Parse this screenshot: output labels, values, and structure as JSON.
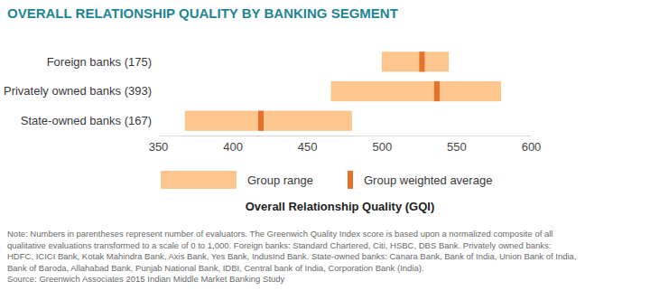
{
  "chart_data": {
    "type": "bar",
    "orientation": "horizontal",
    "title": "OVERALL RELATIONSHIP QUALITY BY BANKING SEGMENT",
    "categories": [
      "Foreign banks (175)",
      "Privately owned banks (393)",
      "State-owned banks (167)"
    ],
    "series": [
      {
        "name": "Group range",
        "type": "range",
        "color": "#fcc68e",
        "low": [
          500,
          466,
          368
        ],
        "high": [
          545,
          580,
          480
        ]
      },
      {
        "name": "Group weighted average",
        "type": "marker",
        "color": "#e5712b",
        "values": [
          527,
          537,
          419
        ]
      }
    ],
    "xlim": [
      350,
      600
    ],
    "xticks": [
      350,
      400,
      450,
      500,
      550,
      600
    ],
    "x_label": "Overall Relationship Quality (GQI)",
    "legend": "bottom",
    "grid": false,
    "note": [
      "Note: Numbers in parentheses represent number of evaluators. The Greenwich Quality Index score is based upon a normalized composite of all",
      "qualitative evaluations transformed to a scale of 0 to 1,000. Foreign banks: Standard Chartered, Citi, HSBC, DBS Bank. Privately owned banks:",
      "HDFC, ICICI Bank, Kotak Mahindra Bank, Axis Bank, Yes Bank, IndusInd Bank. State-owned banks: Canara Bank, Bank of India, Union Bank of India,",
      "Bank of Baroda, Allahabad Bank, Punjab National Bank, IDBI, Central bank of India, Corporation Bank (India)."
    ],
    "source": "Source: Greenwich Associates 2015 Indian Middle Market Banking Study"
  }
}
